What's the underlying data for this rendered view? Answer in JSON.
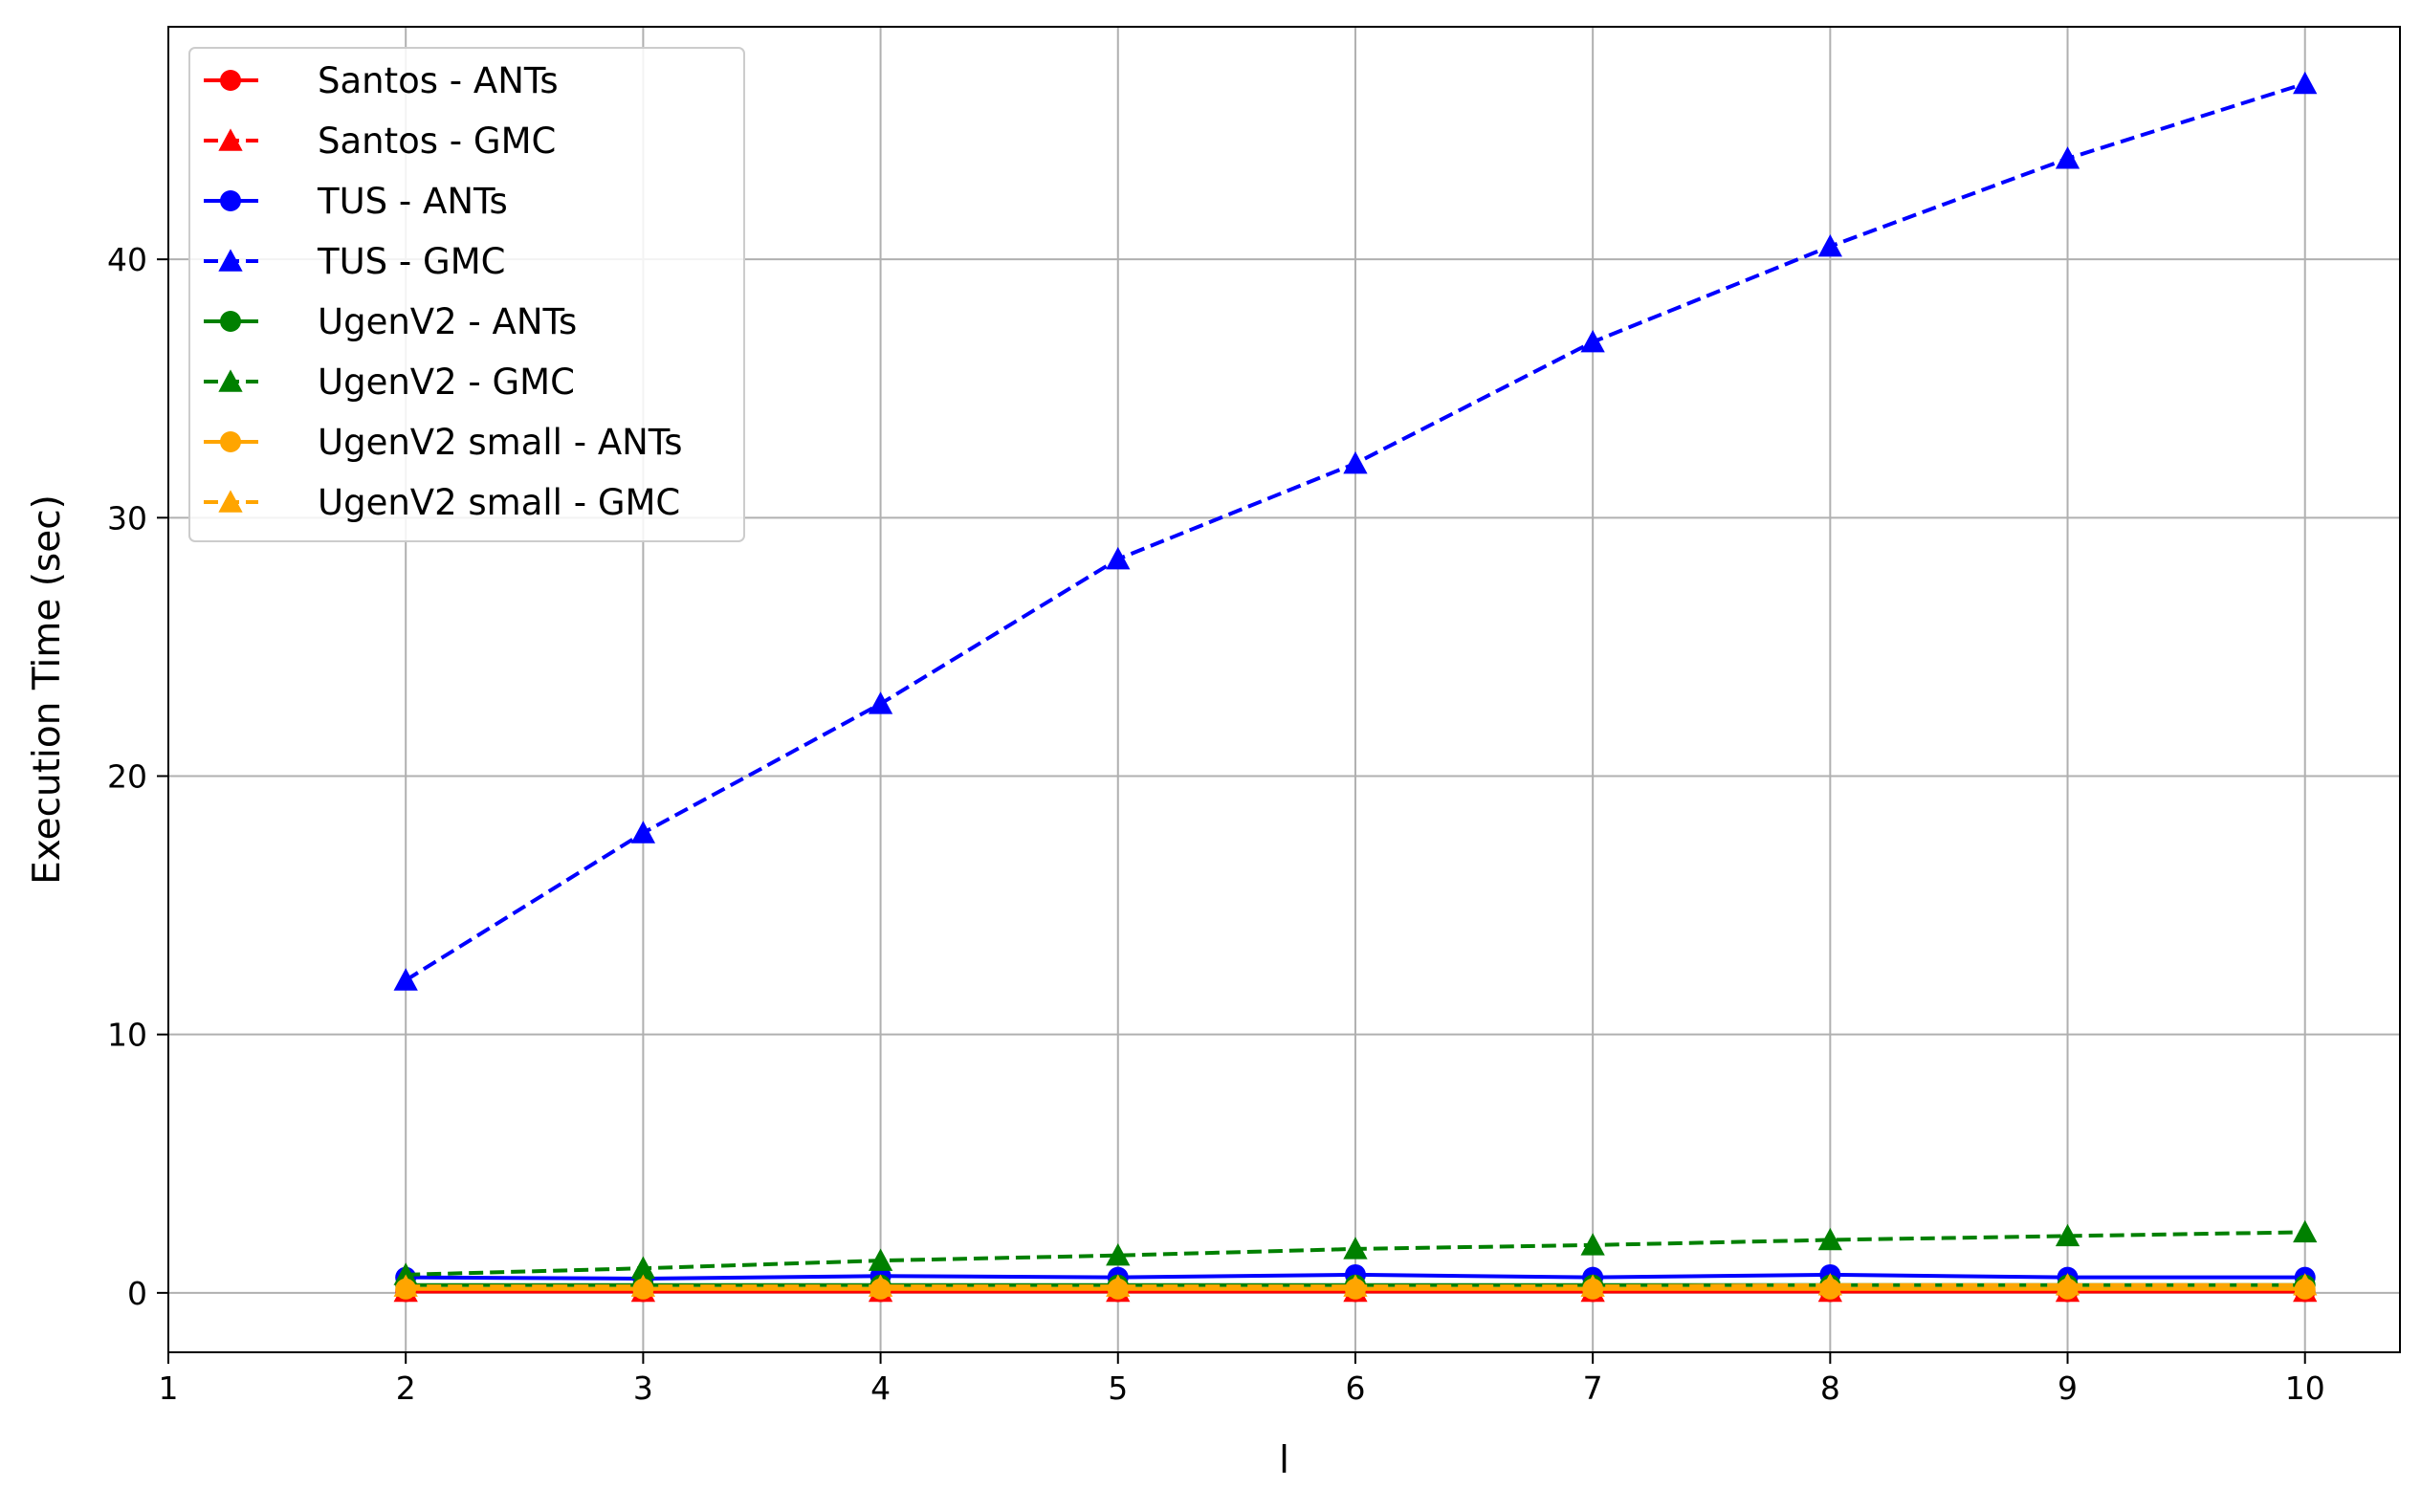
{
  "chart_data": {
    "type": "line",
    "title": "",
    "xlabel": "l",
    "ylabel": "Execution Time (sec)",
    "xlim": [
      1,
      10.4
    ],
    "ylim": [
      -2.3,
      49.0
    ],
    "xticks": [
      1,
      2,
      3,
      4,
      5,
      6,
      7,
      8,
      9,
      10
    ],
    "yticks": [
      0,
      10,
      20,
      30,
      40
    ],
    "grid": true,
    "legend_position": "top-left",
    "x": [
      2,
      3,
      4,
      5,
      6,
      7,
      8,
      9,
      10
    ],
    "series": [
      {
        "name": "Santos - ANTs",
        "color": "#ff0000",
        "dashed": false,
        "marker": "circle",
        "values": [
          0.05,
          0.05,
          0.05,
          0.05,
          0.05,
          0.05,
          0.05,
          0.05,
          0.05
        ]
      },
      {
        "name": "Santos - GMC",
        "color": "#ff0000",
        "dashed": true,
        "marker": "triangle",
        "values": [
          0.05,
          0.05,
          0.05,
          0.05,
          0.05,
          0.05,
          0.05,
          0.05,
          0.05
        ]
      },
      {
        "name": "TUS - ANTs",
        "color": "#0000ff",
        "dashed": false,
        "marker": "circle",
        "values": [
          0.6,
          0.55,
          0.65,
          0.6,
          0.7,
          0.6,
          0.7,
          0.6,
          0.6
        ]
      },
      {
        "name": "TUS - GMC",
        "color": "#0000ff",
        "dashed": true,
        "marker": "triangle",
        "values": [
          12.1,
          17.8,
          22.8,
          28.4,
          32.1,
          36.8,
          40.5,
          43.9,
          46.8
        ]
      },
      {
        "name": "UgenV2 - ANTs",
        "color": "#008000",
        "dashed": false,
        "marker": "circle",
        "values": [
          0.3,
          0.3,
          0.3,
          0.3,
          0.3,
          0.3,
          0.3,
          0.3,
          0.3
        ]
      },
      {
        "name": "UgenV2 - GMC",
        "color": "#008000",
        "dashed": true,
        "marker": "triangle",
        "values": [
          0.7,
          0.95,
          1.25,
          1.45,
          1.7,
          1.85,
          2.05,
          2.2,
          2.35
        ]
      },
      {
        "name": "UgenV2 small - ANTs",
        "color": "#ffa500",
        "dashed": false,
        "marker": "circle",
        "values": [
          0.15,
          0.15,
          0.15,
          0.15,
          0.15,
          0.15,
          0.15,
          0.15,
          0.15
        ]
      },
      {
        "name": "UgenV2 small - GMC",
        "color": "#ffa500",
        "dashed": true,
        "marker": "triangle",
        "values": [
          0.25,
          0.25,
          0.25,
          0.25,
          0.25,
          0.25,
          0.3,
          0.3,
          0.3
        ]
      }
    ]
  }
}
